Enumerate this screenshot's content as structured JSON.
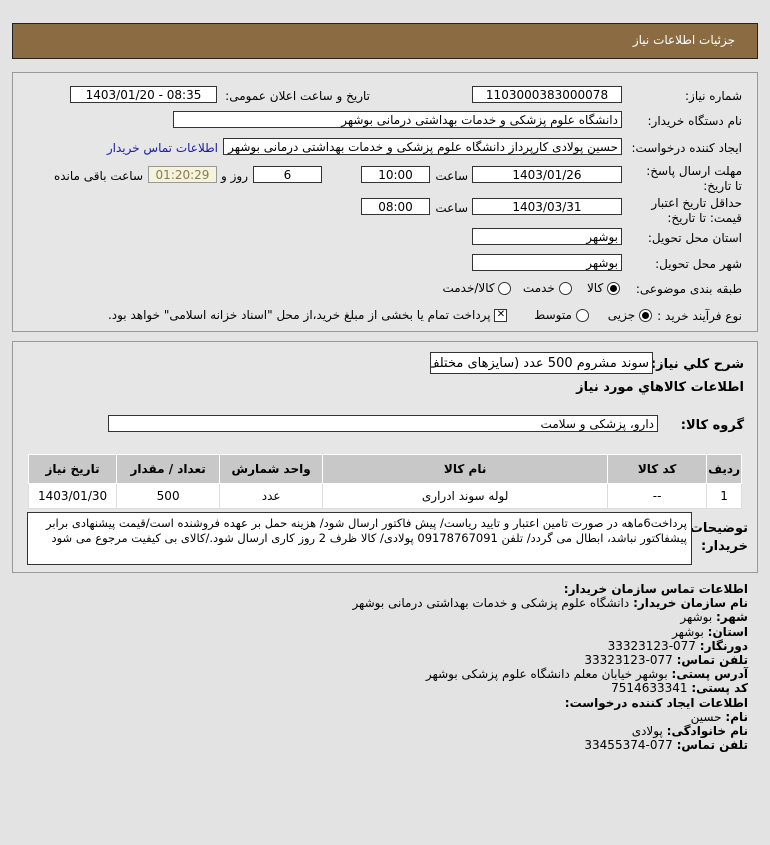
{
  "header": {
    "title": "جزئیات اطلاعات نیاز"
  },
  "form": {
    "need_number_label": "شماره نیاز:",
    "need_number": "1103000383000078",
    "announce_label": "تاریخ و ساعت اعلان عمومی:",
    "announce_value": "1403/01/20 - 08:35",
    "buyer_label": "نام دستگاه خریدار:",
    "buyer": "دانشگاه علوم پزشکی و خدمات بهداشتی درمانی بوشهر",
    "creator_label": "ایجاد کننده درخواست:",
    "creator": "حسین پولادی کارپرداز دانشگاه علوم پزشکی و خدمات بهداشتی درمانی بوشهر",
    "contact_link": "اطلاعات تماس خریدار",
    "deadline_label": "مهلت ارسال پاسخ: تا تاریخ:",
    "deadline_date": "1403/01/26",
    "time_label": "ساعت",
    "deadline_time": "10:00",
    "days": "6",
    "days_label": "روز و",
    "remaining": "01:20:29",
    "remaining_label": "ساعت باقی مانده",
    "validity_label": "حداقل تاریخ اعتبار قیمت: تا تاریخ:",
    "validity_date": "1403/03/31",
    "validity_time": "08:00",
    "province_label": "استان محل تحویل:",
    "province": "بوشهر",
    "city_label": "شهر محل تحویل:",
    "city": "بوشهر",
    "category_label": "طبقه بندی موضوعی:",
    "category_options": [
      "کالا",
      "خدمت",
      "کالا/خدمت"
    ],
    "category_selected": "کالا",
    "process_label": "نوع فرآیند خرید :",
    "process_options": [
      "جزیی",
      "متوسط"
    ],
    "process_selected": "جزیی",
    "payment_note": "پرداخت تمام یا بخشی از مبلغ خرید،از محل \"اسناد خزانه اسلامی\" خواهد بود.",
    "payment_checked": true
  },
  "details": {
    "summary_label": "شرح کلي نیاز:",
    "summary": "سوند مشروم 500 عدد (سایزهای مختلف)",
    "goods_title": "اطلاعات کالاهاي مورد نیاز",
    "group_label": "گروه کالا:",
    "group": "دارو، پزشکی و سلامت",
    "table": {
      "headers": [
        "ردیف",
        "کد کالا",
        "نام کالا",
        "واحد شمارش",
        "تعداد / مقدار",
        "تاریخ نیاز"
      ],
      "rows": [
        [
          "1",
          "--",
          "لوله سوند ادراری",
          "عدد",
          "500",
          "1403/01/30"
        ]
      ]
    },
    "desc_label": "توضیحات خریدار:",
    "desc": "پرداخت6ماهه در صورت تامین اعتبار و تایید ریاست/ پیش فاکتور ارسال شود/ هزینه حمل بر عهده فروشنده است/قیمت پیشنهادی برابر پیشفاکتور نباشد، ابطال می گردد/ تلفن 09178767091 پولادی/ کالا ظرف 2 روز کاری ارسال شود./کالای بی کیفیت مرجوع می شود"
  },
  "contact": {
    "org_title": "اطلاعات تماس سازمان خریدار:",
    "org_name_label": "نام سازمان خریدار:",
    "org_name": "دانشگاه علوم پزشکی و خدمات بهداشتی درمانی بوشهر",
    "city_label": "شهر:",
    "city": "بوشهر",
    "province_label": "استان:",
    "province": "بوشهر",
    "fax_label": "دورنگار:",
    "fax": "077-33323123",
    "phone_label": "تلفن تماس:",
    "phone": "077-33323123",
    "address_label": "آدرس پستی:",
    "address": "بوشهر خیابان معلم دانشگاه علوم پزشکی بوشهر",
    "postal_label": "کد پستی:",
    "postal": "7514633341",
    "creator_title": "اطلاعات ایجاد کننده درخواست:",
    "first_name_label": "نام:",
    "first_name": "حسین",
    "last_name_label": "نام خانوادگی:",
    "last_name": "پولادی",
    "creator_phone_label": "تلفن تماس:",
    "creator_phone": "077-33455374"
  }
}
